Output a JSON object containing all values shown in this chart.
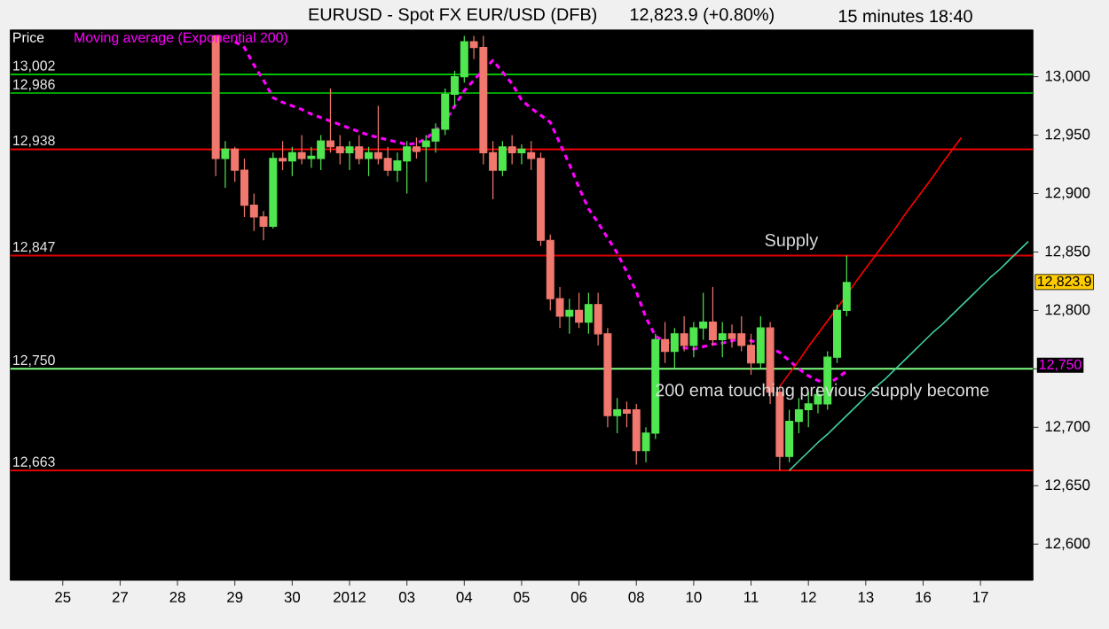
{
  "chart_data": {
    "type": "candlestick",
    "title": "EURUSD - Spot FX EUR/USD (DFB)",
    "subtitle": "12,823.9 (+0.80%)",
    "ylabel": "Price",
    "legend": "top left",
    "ylim": [
      12569,
      13040
    ],
    "yticks": [
      {
        "value": 12600,
        "label": "12,600"
      },
      {
        "value": 12650,
        "label": "12,650"
      },
      {
        "value": 12700,
        "label": "12,700"
      },
      {
        "value": 12750,
        "label": null
      },
      {
        "value": 12800,
        "label": "12,800"
      },
      {
        "value": 12850,
        "label": "12,850"
      },
      {
        "value": 12900,
        "label": "12,900"
      },
      {
        "value": 12950,
        "label": "12,950"
      },
      {
        "value": 13000,
        "label": "13,000"
      }
    ],
    "categories": [
      null,
      null,
      null,
      null,
      null,
      "25",
      null,
      null,
      null,
      null,
      null,
      "27",
      null,
      null,
      null,
      null,
      null,
      "28",
      null,
      null,
      null,
      null,
      null,
      "29",
      null,
      null,
      null,
      null,
      null,
      "30",
      null,
      null,
      null,
      null,
      null,
      "2012",
      null,
      null,
      null,
      null,
      null,
      "03",
      null,
      null,
      null,
      null,
      null,
      "04",
      null,
      null,
      null,
      null,
      null,
      "05",
      null,
      null,
      null,
      null,
      null,
      "06",
      null,
      null,
      null,
      null,
      null,
      "08",
      null,
      null,
      null,
      null,
      null,
      "10",
      null,
      null,
      null,
      null,
      null,
      "11",
      null,
      null,
      null,
      null,
      null,
      "12",
      null,
      null,
      null,
      null,
      null,
      "13",
      null,
      null,
      null,
      null,
      null,
      "16",
      null,
      null,
      null,
      null,
      null,
      "17",
      null,
      null,
      null,
      null,
      null
    ],
    "ohlc": [
      null,
      null,
      null,
      null,
      null,
      null,
      null,
      null,
      null,
      null,
      null,
      null,
      null,
      null,
      null,
      null,
      null,
      null,
      null,
      null,
      null,
      [
        13035,
        13035,
        12915,
        12930
      ],
      [
        12930,
        12945,
        12905,
        12938
      ],
      [
        12938,
        12940,
        12910,
        12920
      ],
      [
        12920,
        12930,
        12880,
        12890
      ],
      [
        12890,
        12900,
        12868,
        12880
      ],
      [
        12880,
        12885,
        12860,
        12872
      ],
      [
        12872,
        12935,
        12870,
        12930
      ],
      [
        12930,
        12945,
        12920,
        12928
      ],
      [
        12928,
        12940,
        12915,
        12935
      ],
      [
        12935,
        12950,
        12925,
        12930
      ],
      [
        12930,
        12940,
        12922,
        12932
      ],
      [
        12930,
        12950,
        12920,
        12945
      ],
      [
        12945,
        12990,
        12935,
        12940
      ],
      [
        12940,
        12950,
        12925,
        12935
      ],
      [
        12935,
        12945,
        12920,
        12940
      ],
      [
        12940,
        12950,
        12925,
        12930
      ],
      [
        12930,
        12940,
        12915,
        12935
      ],
      [
        12935,
        12975,
        12925,
        12930
      ],
      [
        12930,
        12940,
        12915,
        12920
      ],
      [
        12920,
        12935,
        12910,
        12928
      ],
      [
        12928,
        12945,
        12900,
        12940
      ],
      [
        12940,
        12948,
        12930,
        12936
      ],
      [
        12940,
        12950,
        12910,
        12945
      ],
      [
        12945,
        12960,
        12935,
        12955
      ],
      [
        12955,
        12990,
        12950,
        12985
      ],
      [
        12985,
        13005,
        12975,
        13000
      ],
      [
        13000,
        13035,
        12995,
        13030
      ],
      [
        13030,
        13035,
        13015,
        13025
      ],
      [
        13025,
        13035,
        12925,
        12935
      ],
      [
        12935,
        12945,
        12895,
        12920
      ],
      [
        12920,
        12945,
        12915,
        12940
      ],
      [
        12940,
        12950,
        12925,
        12935
      ],
      [
        12935,
        12942,
        12925,
        12938
      ],
      [
        12935,
        12945,
        12920,
        12930
      ],
      [
        12930,
        12935,
        12855,
        12860
      ],
      [
        12860,
        12865,
        12800,
        12810
      ],
      [
        12810,
        12820,
        12785,
        12795
      ],
      [
        12795,
        12810,
        12780,
        12800
      ],
      [
        12800,
        12815,
        12785,
        12790
      ],
      [
        12790,
        12815,
        12780,
        12805
      ],
      [
        12805,
        12815,
        12770,
        12780
      ],
      [
        12780,
        12785,
        12700,
        12710
      ],
      [
        12710,
        12725,
        12695,
        12715
      ],
      [
        12715,
        12722,
        12700,
        12712
      ],
      [
        12715,
        12720,
        12668,
        12680
      ],
      [
        12680,
        12700,
        12670,
        12695
      ],
      [
        12695,
        12780,
        12690,
        12775
      ],
      [
        12775,
        12790,
        12755,
        12765
      ],
      [
        12765,
        12785,
        12750,
        12780
      ],
      [
        12780,
        12795,
        12765,
        12770
      ],
      [
        12770,
        12790,
        12760,
        12785
      ],
      [
        12785,
        12815,
        12775,
        12790
      ],
      [
        12790,
        12820,
        12770,
        12775
      ],
      [
        12775,
        12790,
        12760,
        12780
      ],
      [
        12780,
        12788,
        12768,
        12776
      ],
      [
        12780,
        12795,
        12765,
        12770
      ],
      [
        12770,
        12780,
        12745,
        12755
      ],
      [
        12755,
        12795,
        12750,
        12785
      ],
      [
        12785,
        12790,
        12720,
        12730
      ],
      [
        12730,
        12735,
        12663,
        12675
      ],
      [
        12675,
        12715,
        12670,
        12705
      ],
      [
        12705,
        12725,
        12695,
        12715
      ],
      [
        12715,
        12730,
        12700,
        12720
      ],
      [
        12720,
        12735,
        12712,
        12728
      ],
      [
        12720,
        12765,
        12715,
        12760
      ],
      [
        12760,
        12805,
        12755,
        12800
      ],
      [
        12800,
        12847,
        12795,
        12823.9
      ],
      null,
      null,
      null,
      null,
      null,
      null,
      null,
      null,
      null,
      null,
      null,
      null,
      null,
      null,
      null,
      null,
      null,
      null,
      null
    ],
    "series": [
      {
        "type": "line",
        "name": "Moving average (Exponential 200)",
        "color": "#ff00ff",
        "line_style": "dashed",
        "values": [
          null,
          null,
          null,
          null,
          null,
          null,
          null,
          null,
          null,
          null,
          null,
          null,
          null,
          null,
          null,
          null,
          null,
          null,
          null,
          null,
          null,
          null,
          null,
          13030,
          13025,
          13010,
          12997,
          12982,
          12978,
          12975,
          12972,
          12968,
          12965,
          12962,
          12959,
          12956,
          12953,
          12950,
          12948,
          12946,
          12944,
          12942,
          12943,
          12947,
          12954,
          12962,
          12975,
          12988,
          12997,
          13006,
          13014,
          13004,
          12994,
          12980,
          12973,
          12967,
          12961,
          12943,
          12925,
          12905,
          12887,
          12875,
          12862,
          12849,
          12833,
          12816,
          12794,
          12778,
          12773,
          12770,
          12768,
          12767,
          12769,
          12771,
          12772,
          12774,
          12776,
          12774,
          12772,
          12768,
          12764,
          12757,
          12750,
          12744,
          12740,
          12737,
          12742,
          12748,
          null,
          null,
          null,
          null,
          null,
          null,
          null,
          null,
          null,
          null,
          null,
          null,
          null,
          null,
          null,
          null,
          null,
          null,
          null
        ]
      },
      {
        "type": "line",
        "color": "#ff0000",
        "line_style": "solid",
        "values": [
          null,
          null,
          null,
          null,
          null,
          null,
          null,
          null,
          null,
          null,
          null,
          null,
          null,
          null,
          null,
          null,
          null,
          null,
          null,
          null,
          null,
          null,
          null,
          null,
          null,
          null,
          null,
          null,
          null,
          null,
          null,
          null,
          null,
          null,
          null,
          null,
          null,
          null,
          null,
          null,
          null,
          null,
          null,
          null,
          null,
          null,
          null,
          null,
          null,
          null,
          null,
          null,
          null,
          null,
          null,
          null,
          null,
          null,
          null,
          null,
          null,
          null,
          null,
          null,
          null,
          null,
          null,
          null,
          null,
          null,
          null,
          null,
          null,
          null,
          null,
          null,
          null,
          null,
          null,
          null,
          12735,
          12746,
          12757,
          12769,
          12780,
          12791,
          12802,
          12813,
          12825,
          12836,
          12847,
          12858,
          12869,
          12881,
          12892,
          12903,
          12914,
          12926,
          12937,
          12948,
          null,
          null,
          null,
          null,
          null,
          null,
          null
        ]
      },
      {
        "type": "line",
        "color": "#40d0a0",
        "line_style": "solid",
        "values": [
          null,
          null,
          null,
          null,
          null,
          null,
          null,
          null,
          null,
          null,
          null,
          null,
          null,
          null,
          null,
          null,
          null,
          null,
          null,
          null,
          null,
          null,
          null,
          null,
          null,
          null,
          null,
          null,
          null,
          null,
          null,
          null,
          null,
          null,
          null,
          null,
          null,
          null,
          null,
          null,
          null,
          null,
          null,
          null,
          null,
          null,
          null,
          null,
          null,
          null,
          null,
          null,
          null,
          null,
          null,
          null,
          null,
          null,
          null,
          null,
          null,
          null,
          null,
          null,
          null,
          null,
          null,
          null,
          null,
          null,
          null,
          null,
          null,
          null,
          null,
          null,
          null,
          null,
          null,
          null,
          null,
          12663,
          12671,
          12679,
          12687,
          12694,
          12702,
          12710,
          12718,
          12726,
          12734,
          12741,
          12749,
          12757,
          12765,
          12773,
          12781,
          12788,
          12796,
          12804,
          12812,
          12820,
          12828,
          12835,
          12843,
          12851,
          12859
        ]
      }
    ],
    "ref_lines": [
      {
        "axis": "y",
        "value": 13002,
        "label": "13,002",
        "color": "#00c000"
      },
      {
        "axis": "y",
        "value": 12986,
        "label": "12,986",
        "color": "#00a000"
      },
      {
        "axis": "y",
        "value": 12938,
        "label": "12,938",
        "color": "#ff0000"
      },
      {
        "axis": "y",
        "value": 12847,
        "label": "12,847",
        "color": "#e00000"
      },
      {
        "axis": "y",
        "value": 12750,
        "label": "12,750",
        "color": "#80ff80"
      },
      {
        "axis": "y",
        "value": 12663,
        "label": "12,663",
        "color": "#e00000"
      }
    ],
    "annotations": [
      "15 minutes  18:40",
      "Supply",
      "200 ema touching previous supply become",
      "12,823.9",
      "12,750"
    ]
  }
}
